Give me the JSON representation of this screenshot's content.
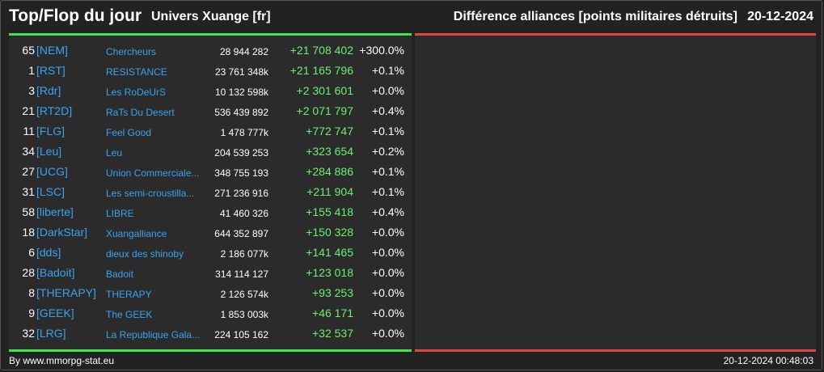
{
  "header": {
    "title": "Top/Flop du jour",
    "universe": "Univers Xuange [fr]",
    "right_title": "Différence alliances [points militaires détruits]",
    "date": "20-12-2024"
  },
  "colors": {
    "top_accent": "#3fe54d",
    "flop_accent": "#e0453f",
    "tag_link": "#3aa3ee",
    "positive_diff": "#6cf06f"
  },
  "top_rows": [
    {
      "rank": "65",
      "tag": "[NEM]",
      "name": "Chercheurs",
      "points": "28 944 282",
      "diff": "+21 708 402",
      "pct": "+300.0%"
    },
    {
      "rank": "1",
      "tag": "[RST]",
      "name": "RESISTANCE",
      "points": "23 761 348k",
      "diff": "+21 165 796",
      "pct": "+0.1%"
    },
    {
      "rank": "3",
      "tag": "[Rdr]",
      "name": "Les RoDeUrS",
      "points": "10 132 598k",
      "diff": "+2 301 601",
      "pct": "+0.0%"
    },
    {
      "rank": "21",
      "tag": "[RT2D]",
      "name": "RaTs Du Desert",
      "points": "536 439 892",
      "diff": "+2 071 797",
      "pct": "+0.4%"
    },
    {
      "rank": "11",
      "tag": "[FLG]",
      "name": "Feel Good",
      "points": "1 478 777k",
      "diff": "+772 747",
      "pct": "+0.1%"
    },
    {
      "rank": "34",
      "tag": "[Leu]",
      "name": "Leu",
      "points": "204 539 253",
      "diff": "+323 654",
      "pct": "+0.2%"
    },
    {
      "rank": "27",
      "tag": "[UCG]",
      "name": "Union Commerciale...",
      "points": "348 755 193",
      "diff": "+284 886",
      "pct": "+0.1%"
    },
    {
      "rank": "31",
      "tag": "[LSC]",
      "name": "Les semi-croustilla...",
      "points": "271 236 916",
      "diff": "+211 904",
      "pct": "+0.1%"
    },
    {
      "rank": "58",
      "tag": "[liberte]",
      "name": "LIBRE",
      "points": "41 460 326",
      "diff": "+155 418",
      "pct": "+0.4%"
    },
    {
      "rank": "18",
      "tag": "[DarkStar]",
      "name": "Xuangalliance",
      "points": "644 352 897",
      "diff": "+150 328",
      "pct": "+0.0%"
    },
    {
      "rank": "6",
      "tag": "[dds]",
      "name": "dieux des shinoby",
      "points": "2 186 077k",
      "diff": "+141 465",
      "pct": "+0.0%"
    },
    {
      "rank": "28",
      "tag": "[Badoit]",
      "name": "Badoit",
      "points": "314 114 127",
      "diff": "+123 018",
      "pct": "+0.0%"
    },
    {
      "rank": "8",
      "tag": "[THERAPY]",
      "name": "THERAPY",
      "points": "2 126 574k",
      "diff": "+93 253",
      "pct": "+0.0%"
    },
    {
      "rank": "9",
      "tag": "[GEEK]",
      "name": "The GEEK",
      "points": "1 853 003k",
      "diff": "+46 171",
      "pct": "+0.0%"
    },
    {
      "rank": "32",
      "tag": "[LRG]",
      "name": "La Republique Gala...",
      "points": "224 105 162",
      "diff": "+32 537",
      "pct": "+0.0%"
    }
  ],
  "footer": {
    "credit": "By www.mmorpg-stat.eu",
    "timestamp": "20-12-2024 00:48:03"
  }
}
